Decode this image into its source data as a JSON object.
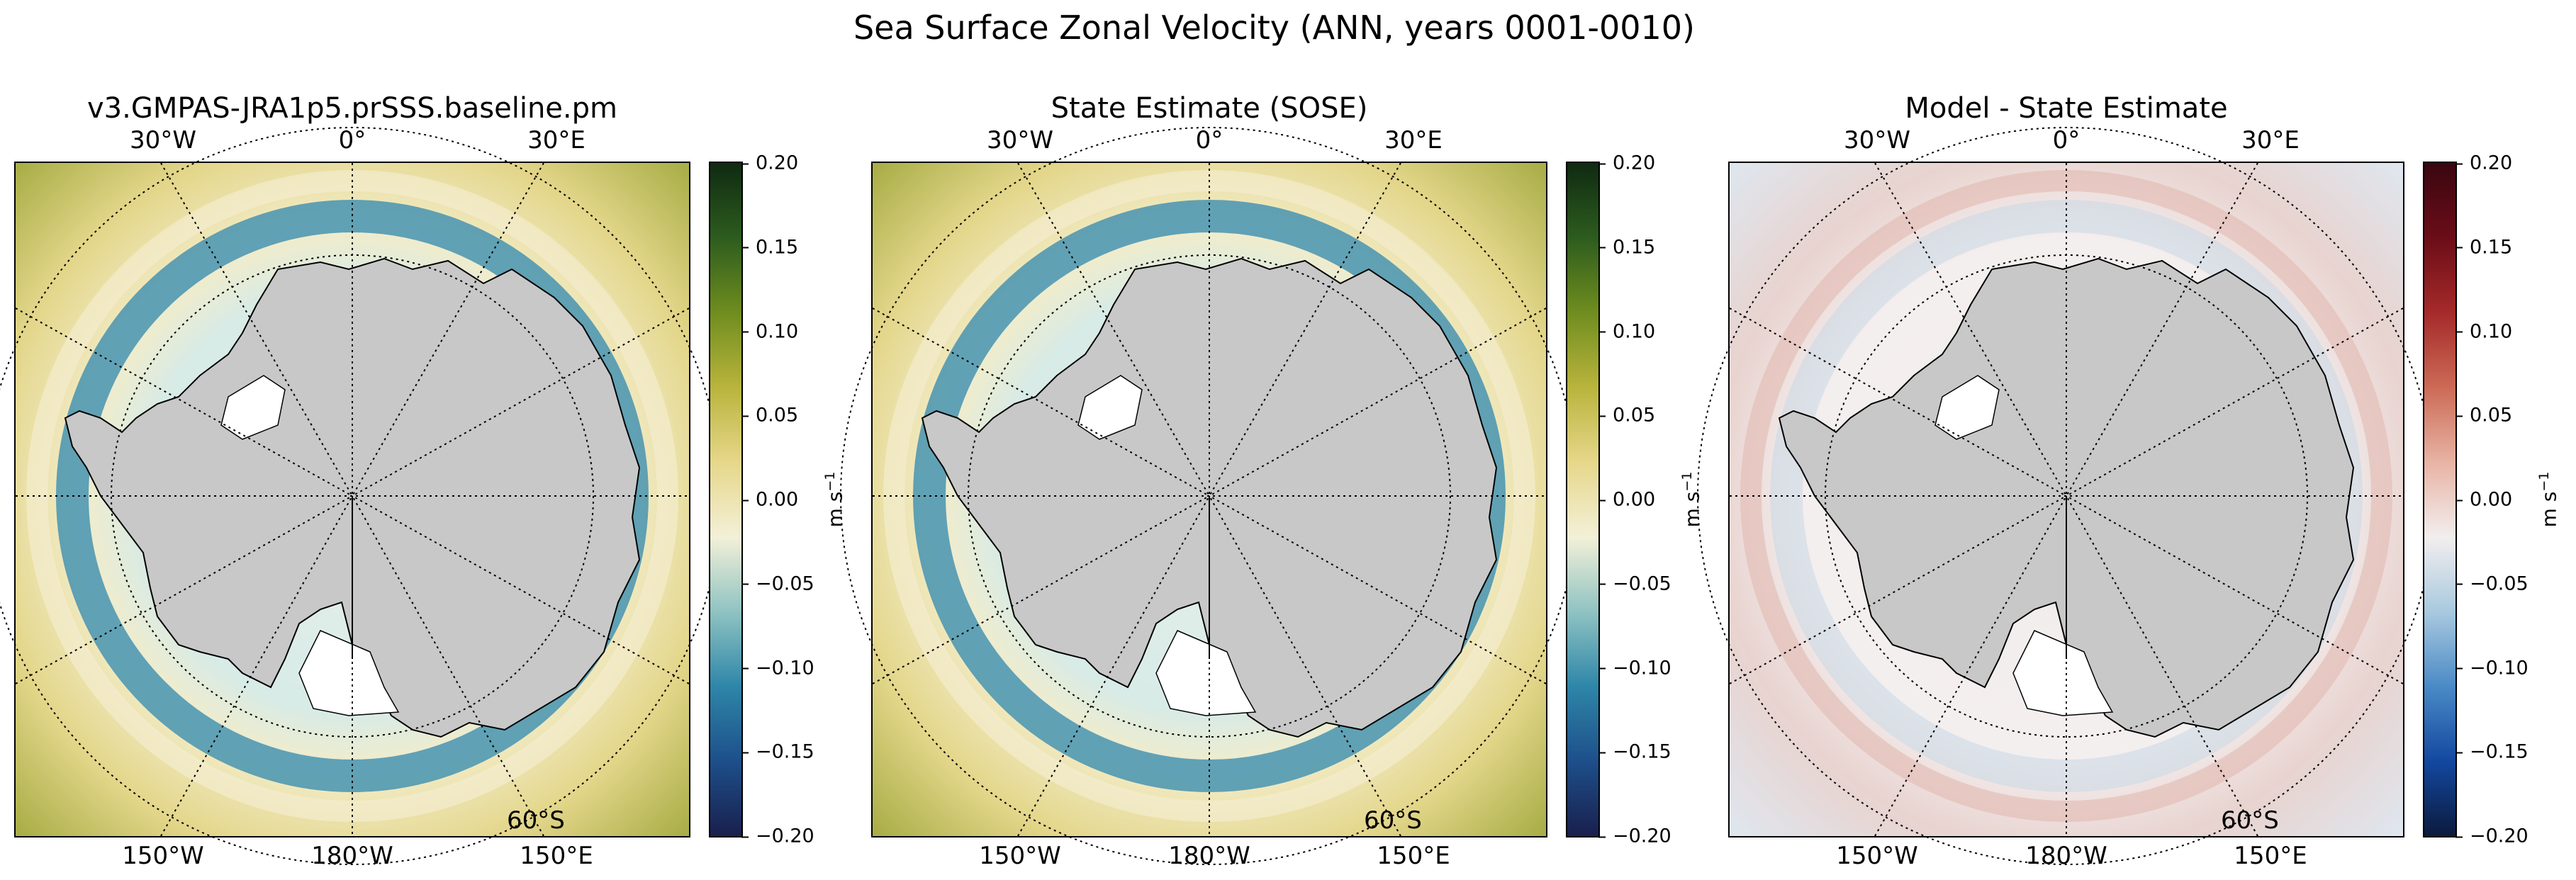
{
  "figure": {
    "title": "Sea Surface Zonal Velocity (ANN, years 0001-0010)"
  },
  "panels": [
    {
      "title": "v3.GMPAS-JRA1p5.prSSS.baseline.pm",
      "colormap": "diverging_blue_green",
      "colorbar_colors": [
        "#1a1f4d",
        "#1d4f8a",
        "#2e86a8",
        "#8fc3c2",
        "#f3f0d8",
        "#e6d78a",
        "#b9b43c",
        "#6f8d1f",
        "#2d5c1e",
        "#0f2a12"
      ],
      "colorbar_ticks": [
        "0.20",
        "0.15",
        "0.10",
        "0.05",
        "0.00",
        "−0.05",
        "−0.10",
        "−0.15",
        "−0.20"
      ],
      "colorbar_unit": "m s",
      "colorbar_unit_sup": "−1"
    },
    {
      "title": "State Estimate (SOSE)",
      "colormap": "diverging_blue_green",
      "colorbar_colors": [
        "#1a1f4d",
        "#1d4f8a",
        "#2e86a8",
        "#8fc3c2",
        "#f3f0d8",
        "#e6d78a",
        "#b9b43c",
        "#6f8d1f",
        "#2d5c1e",
        "#0f2a12"
      ],
      "colorbar_ticks": [
        "0.20",
        "0.15",
        "0.10",
        "0.05",
        "0.00",
        "−0.05",
        "−0.10",
        "−0.15",
        "−0.20"
      ],
      "colorbar_unit": "m s",
      "colorbar_unit_sup": "−1"
    },
    {
      "title": "Model - State Estimate",
      "colormap": "diverging_blue_red",
      "colorbar_colors": [
        "#0b1a3c",
        "#1348a0",
        "#4a8ac6",
        "#a9c9df",
        "#f2eeee",
        "#e8b3a4",
        "#cc6a56",
        "#a52a2a",
        "#6b0d18",
        "#3a0610"
      ],
      "colorbar_ticks": [
        "0.20",
        "0.15",
        "0.10",
        "0.05",
        "0.00",
        "−0.05",
        "−0.10",
        "−0.15",
        "−0.20"
      ],
      "colorbar_unit": "m s",
      "colorbar_unit_sup": "−1"
    }
  ],
  "map_labels": {
    "top": [
      "30°W",
      "0°",
      "30°E"
    ],
    "bottom": [
      "150°W",
      "180°W",
      "150°E"
    ],
    "lat": "60°S"
  },
  "colors": {
    "land": "#c8c8c8",
    "ice_shelf": "#ffffff"
  }
}
